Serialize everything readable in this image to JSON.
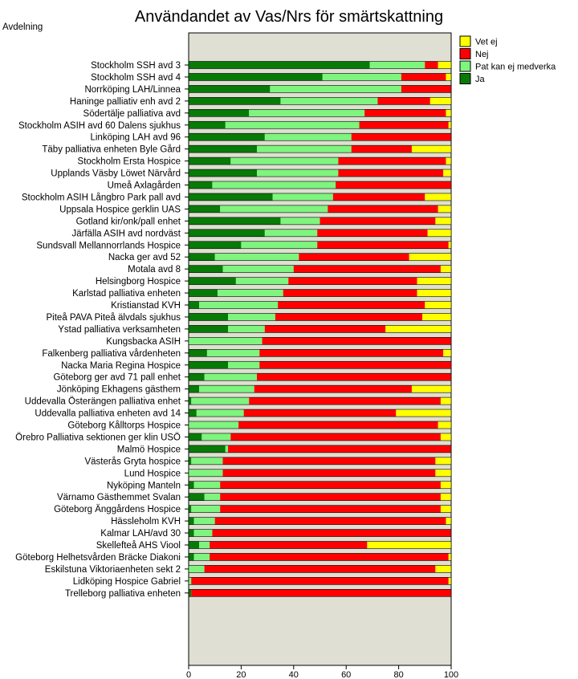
{
  "colors": {
    "plot_bg": "#e0dfd3",
    "Vet ej": "#ffff00",
    "Nej": "#ff0000",
    "Pat kan ej medverka": "#7ff47f",
    "Ja": "#087a08"
  },
  "chart_data": {
    "type": "bar",
    "orientation": "horizontal",
    "stacked": true,
    "title": "Användandet av Vas/Nrs för smärtskattning",
    "ylabel": "Avdelning",
    "xlabel": "",
    "xlim": [
      0,
      100
    ],
    "xticks": [
      0,
      20,
      40,
      60,
      80,
      100
    ],
    "legend": [
      "Vet ej",
      "Nej",
      "Pat kan ej medverka",
      "Ja"
    ],
    "legend_position": "top-right",
    "categories": [
      "Stockholm SSH avd 3",
      "Stockholm SSH avd 4",
      "Norrköping LAH/Linnea",
      "Haninge palliativ enh avd 2",
      "Södertälje palliativa avd",
      "Stockholm ASIH avd 60 Dalens sjukhus",
      "Linköping LAH avd 96",
      "Täby palliativa enheten Byle Gård",
      "Stockholm Ersta Hospice",
      "Upplands Väsby Löwet Närvård",
      "Umeå Axlagården",
      "Stockholm ASIH Långbro Park pall avd",
      "Uppsala Hospice gerklin UAS",
      "Gotland kir/onk/pall enhet",
      "Järfälla ASIH avd nordväst",
      "Sundsvall Mellannorrlands Hospice",
      "Nacka ger avd 52",
      "Motala avd 8",
      "Helsingborg Hospice",
      "Karlstad palliativa enheten",
      "Kristianstad KVH",
      "Piteå PAVA Piteå älvdals sjukhus",
      "Ystad palliativa verksamheten",
      "Kungsbacka ASIH",
      "Falkenberg palliativa vårdenheten",
      "Nacka Maria Regina Hospice",
      "Göteborg ger avd 71 pall enhet",
      "Jönköping Ekhagens gästhem",
      "Uddevalla Österängen palliativa enhet",
      "Uddevalla palliativa enheten avd 14",
      "Göteborg Kålltorps Hospice",
      "Örebro Palliativa sektionen ger klin USÖ",
      "Malmö Hospice",
      "Västerås Gryta hospice",
      "Lund Hospice",
      "Nyköping Manteln",
      "Värnamo Gästhemmet Svalan",
      "Göteborg Änggårdens Hospice",
      "Hässleholm KVH",
      "Kalmar LAH/avd 30",
      "Skellefteå AHS Viool",
      "Göteborg Helhetsvården Bräcke Diakoni",
      "Eskilstuna Viktoriaenheten sekt 2",
      "Lidköping Hospice Gabriel",
      "Trelleborg palliativa enheten"
    ],
    "series": [
      {
        "name": "Ja",
        "values": [
          69,
          51,
          31,
          35,
          23,
          14,
          29,
          26,
          16,
          26,
          9,
          32,
          12,
          35,
          29,
          20,
          10,
          13,
          18,
          11,
          4,
          15,
          15,
          0,
          7,
          15,
          6,
          4,
          1,
          3,
          0,
          5,
          14,
          1,
          0,
          2,
          6,
          1,
          2,
          2,
          4,
          2,
          0,
          0,
          1
        ]
      },
      {
        "name": "Pat kan ej medverka",
        "values": [
          21,
          30,
          50,
          37,
          44,
          51,
          33,
          36,
          41,
          31,
          47,
          23,
          41,
          15,
          20,
          29,
          32,
          27,
          20,
          25,
          30,
          18,
          14,
          28,
          20,
          12,
          20,
          21,
          22,
          18,
          19,
          11,
          1,
          12,
          13,
          10,
          6,
          11,
          8,
          7,
          4,
          6,
          6,
          1,
          0
        ]
      },
      {
        "name": "Nej",
        "values": [
          5,
          17,
          19,
          20,
          31,
          34,
          38,
          23,
          41,
          40,
          44,
          35,
          42,
          44,
          42,
          50,
          42,
          56,
          49,
          51,
          56,
          56,
          46,
          72,
          70,
          73,
          74,
          60,
          73,
          58,
          76,
          80,
          85,
          81,
          81,
          84,
          84,
          84,
          88,
          91,
          60,
          91,
          88,
          98,
          99
        ]
      },
      {
        "name": "Vet ej",
        "values": [
          5,
          2,
          0,
          8,
          2,
          1,
          0,
          15,
          2,
          3,
          0,
          10,
          5,
          6,
          9,
          1,
          16,
          4,
          13,
          13,
          10,
          11,
          25,
          0,
          3,
          0,
          0,
          15,
          4,
          21,
          5,
          4,
          0,
          6,
          6,
          4,
          4,
          4,
          2,
          0,
          32,
          1,
          6,
          1,
          0
        ]
      }
    ]
  }
}
